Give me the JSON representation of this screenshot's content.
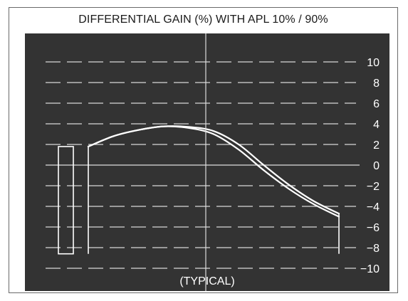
{
  "chart_data": {
    "type": "line",
    "title": "DIFFERENTIAL GAIN (%) WITH APL 10% / 90%",
    "annotation": "(TYPICAL)",
    "ylim": [
      -10,
      10
    ],
    "y_ticks": [
      "10",
      "8",
      "6",
      "4",
      "2",
      "0",
      "−2",
      "−4",
      "−6",
      "−8",
      "−10"
    ],
    "y_tick_values": [
      10,
      8,
      6,
      4,
      2,
      0,
      -2,
      -4,
      -6,
      -8,
      -10
    ],
    "grid": "dashed horizontal lines at every tick; solid lines at 0 and at the center vertical",
    "x": [
      0,
      0.1,
      0.2,
      0.3,
      0.4,
      0.5,
      0.6,
      0.7,
      0.8,
      0.9,
      1.0
    ],
    "series": [
      {
        "values": [
          1.8,
          2.8,
          3.4,
          3.75,
          3.6,
          3.0,
          1.5,
          -0.5,
          -2.3,
          -3.8,
          -5.0
        ]
      },
      {
        "values": [
          1.8,
          2.8,
          3.4,
          3.75,
          3.7,
          3.3,
          2.0,
          0.0,
          -1.9,
          -3.5,
          -4.7
        ]
      }
    ],
    "start_step": {
      "value": 1.8,
      "min": -8.6
    },
    "end_step_min": -8.6,
    "colors": {
      "background": "#333333",
      "lines": "#ffffff",
      "frame": "#6a6a6a"
    }
  }
}
